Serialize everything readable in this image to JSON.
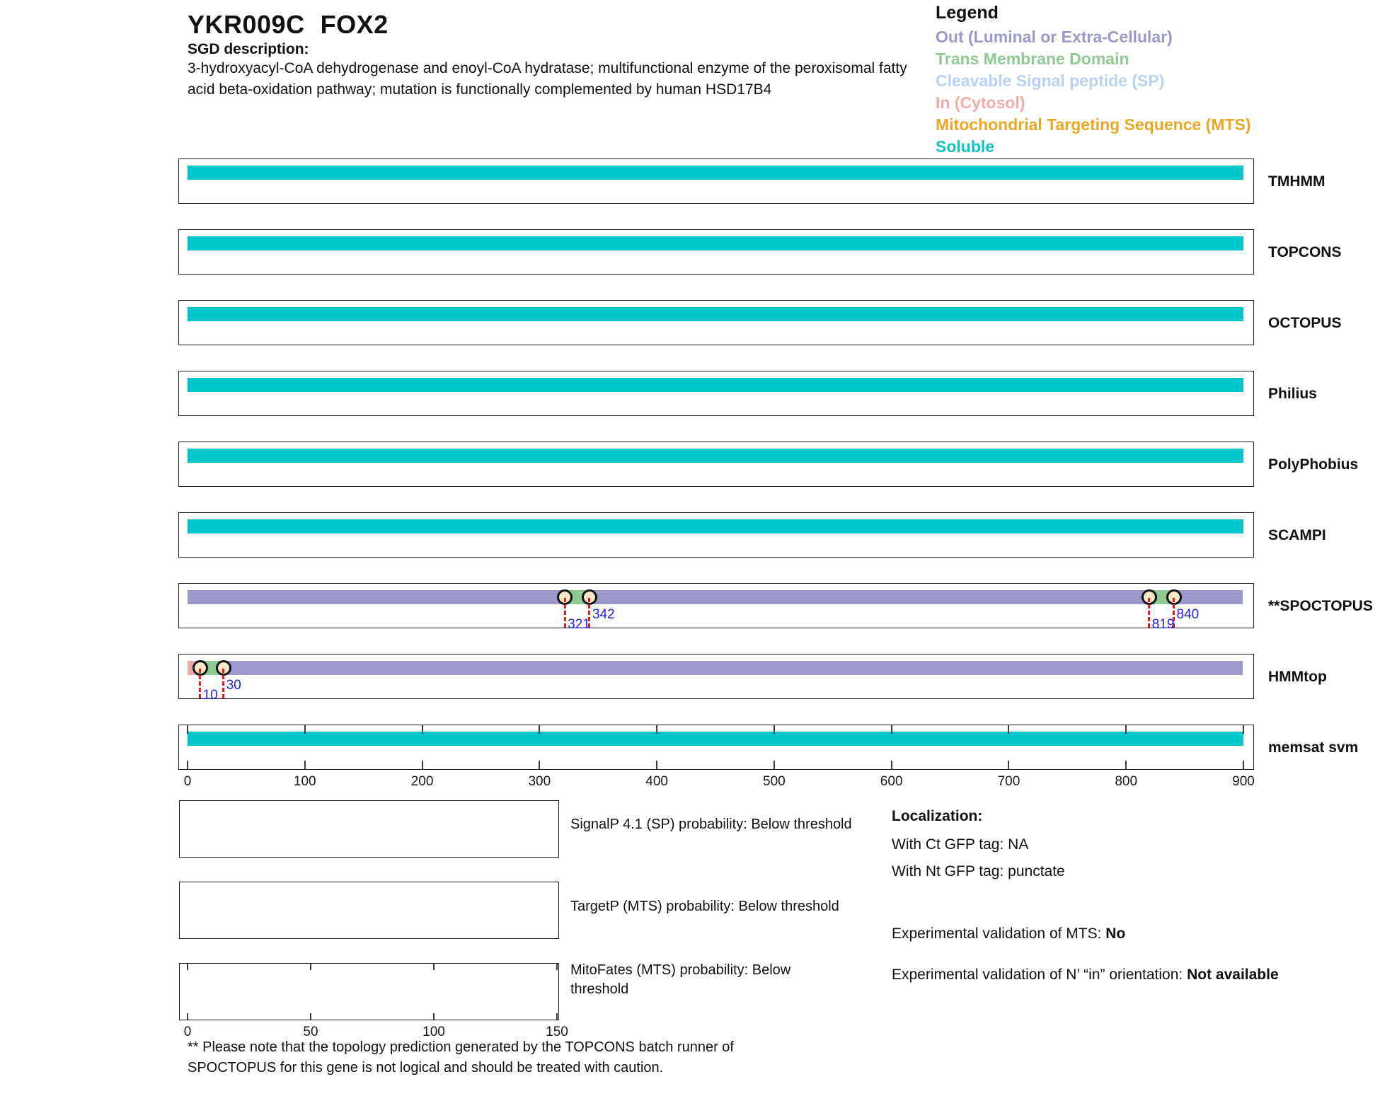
{
  "header": {
    "title_systematic": "YKR009C",
    "title_standard": "FOX2",
    "sgd_label": "SGD description:",
    "sgd_description": "3-hydroxyacyl-CoA dehydrogenase and enoyl-CoA hydratase; multifunctional enzyme of the peroxisomal fatty acid beta-oxidation pathway; mutation is functionally complemented by human HSD17B4"
  },
  "legend": {
    "title": "Legend",
    "items": [
      {
        "key": "out",
        "label": "Out (Luminal or Extra-Cellular)",
        "color": "#9b99cc"
      },
      {
        "key": "tm",
        "label": "Trans Membrane Domain",
        "color": "#8fc893"
      },
      {
        "key": "sp",
        "label": "Cleavable Signal peptide (SP)",
        "color": "#b9d2f2"
      },
      {
        "key": "in",
        "label": "In (Cytosol)",
        "color": "#f2aba8"
      },
      {
        "key": "mts",
        "label": "Mitochondrial Targeting Sequence (MTS)",
        "color": "#eaa822"
      },
      {
        "key": "soluble",
        "label": "Soluble",
        "color": "#10c3c4"
      }
    ]
  },
  "colors": {
    "out": "#9b99cc",
    "tm": "#8fc893",
    "sp": "#b9d2f2",
    "in": "#f0a9ab",
    "mts": "#eaa822",
    "soluble": "#00c6cc",
    "marker_line": "#f01818",
    "marker_fill": "#f6e8c8",
    "marker_number": "#2222dd"
  },
  "chart_data": {
    "type": "topology-tracks",
    "xlabel": "residue position",
    "axis": {
      "min": 0,
      "max": 900,
      "ticks": [
        0,
        100,
        200,
        300,
        400,
        500,
        600,
        700,
        800,
        900
      ]
    },
    "tracks": [
      {
        "label": "TMHMM",
        "segments": [
          {
            "start": 0,
            "end": 900,
            "type": "soluble"
          }
        ],
        "markers": [],
        "ruler": false
      },
      {
        "label": "TOPCONS",
        "segments": [
          {
            "start": 0,
            "end": 900,
            "type": "soluble"
          }
        ],
        "markers": [],
        "ruler": false
      },
      {
        "label": "OCTOPUS",
        "segments": [
          {
            "start": 0,
            "end": 900,
            "type": "soluble"
          }
        ],
        "markers": [],
        "ruler": false
      },
      {
        "label": "Philius",
        "segments": [
          {
            "start": 0,
            "end": 900,
            "type": "soluble"
          }
        ],
        "markers": [],
        "ruler": false
      },
      {
        "label": "PolyPhobius",
        "segments": [
          {
            "start": 0,
            "end": 900,
            "type": "soluble"
          }
        ],
        "markers": [],
        "ruler": false
      },
      {
        "label": "SCAMPI",
        "segments": [
          {
            "start": 0,
            "end": 900,
            "type": "soluble"
          }
        ],
        "markers": [],
        "ruler": false
      },
      {
        "label": "**SPOCTOPUS",
        "segments": [
          {
            "start": 0,
            "end": 321,
            "type": "out"
          },
          {
            "start": 321,
            "end": 342,
            "type": "tm"
          },
          {
            "start": 342,
            "end": 819,
            "type": "out"
          },
          {
            "start": 819,
            "end": 840,
            "type": "tm"
          },
          {
            "start": 840,
            "end": 900,
            "type": "out"
          }
        ],
        "markers": [
          {
            "pos": 321,
            "label": "321",
            "lane": "low"
          },
          {
            "pos": 342,
            "label": "342",
            "lane": "high"
          },
          {
            "pos": 819,
            "label": "819",
            "lane": "low"
          },
          {
            "pos": 840,
            "label": "840",
            "lane": "high"
          }
        ],
        "ruler": false
      },
      {
        "label": "HMMtop",
        "segments": [
          {
            "start": 0,
            "end": 10,
            "type": "in"
          },
          {
            "start": 10,
            "end": 30,
            "type": "tm"
          },
          {
            "start": 30,
            "end": 900,
            "type": "out"
          }
        ],
        "markers": [
          {
            "pos": 10,
            "label": "10",
            "lane": "low"
          },
          {
            "pos": 30,
            "label": "30",
            "lane": "high"
          }
        ],
        "ruler": false
      },
      {
        "label": "memsat svm",
        "segments": [
          {
            "start": 0,
            "end": 900,
            "type": "soluble"
          }
        ],
        "markers": [],
        "ruler": true
      }
    ]
  },
  "probability_plots": [
    {
      "label": "SignalP 4.1 (SP) probability: Below threshold",
      "ticks": []
    },
    {
      "label": "TargetP (MTS) probability: Below threshold",
      "ticks": []
    },
    {
      "label": "MitoFates (MTS) probability: Below threshold",
      "ticks": [
        0,
        50,
        100,
        150
      ],
      "axis_max": 150
    }
  ],
  "localization": {
    "title": "Localization:",
    "ct_line": "With Ct GFP tag: NA",
    "nt_line": "With Nt GFP tag: punctate",
    "mts_label": "Experimental validation of MTS: ",
    "mts_value": "No",
    "orientation_label": "Experimental validation of N’ “in” orientation: ",
    "orientation_value": "Not available"
  },
  "footnote": "** Please note that the topology prediction generated by the TOPCONS batch runner of SPOCTOPUS for this gene is not logical and should be treated with caution."
}
